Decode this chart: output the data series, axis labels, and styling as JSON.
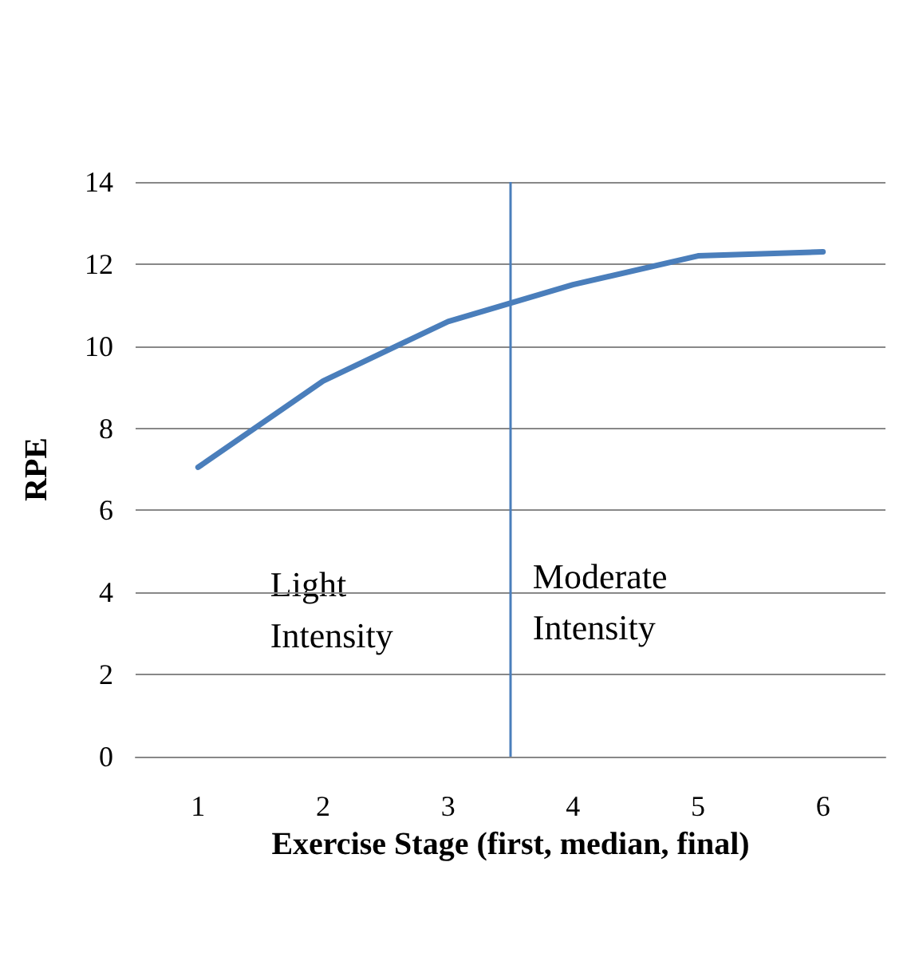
{
  "chart_data": {
    "type": "line",
    "xlabel": "Exercise Stage (first, median, final)",
    "ylabel": "RPE",
    "x": [
      1,
      2,
      3,
      4,
      5,
      6
    ],
    "series": [
      {
        "color": "#4a7ebb",
        "values": [
          7.05,
          9.15,
          10.6,
          11.5,
          12.2,
          12.3
        ]
      }
    ],
    "xlim": [
      0.5,
      6.5
    ],
    "xticks": [
      1,
      2,
      3,
      4,
      5,
      6
    ],
    "ylim": [
      0,
      14
    ],
    "yticks": [
      0,
      2,
      4,
      6,
      8,
      10,
      12,
      14
    ],
    "grid": "y",
    "marker": "none",
    "line_style": "solid",
    "ref_lines": [
      {
        "axis": "x",
        "value": 3.5,
        "color": "#4a7ebb"
      }
    ],
    "annotations": [
      "Light Intensity",
      "Moderate Intensity"
    ]
  }
}
